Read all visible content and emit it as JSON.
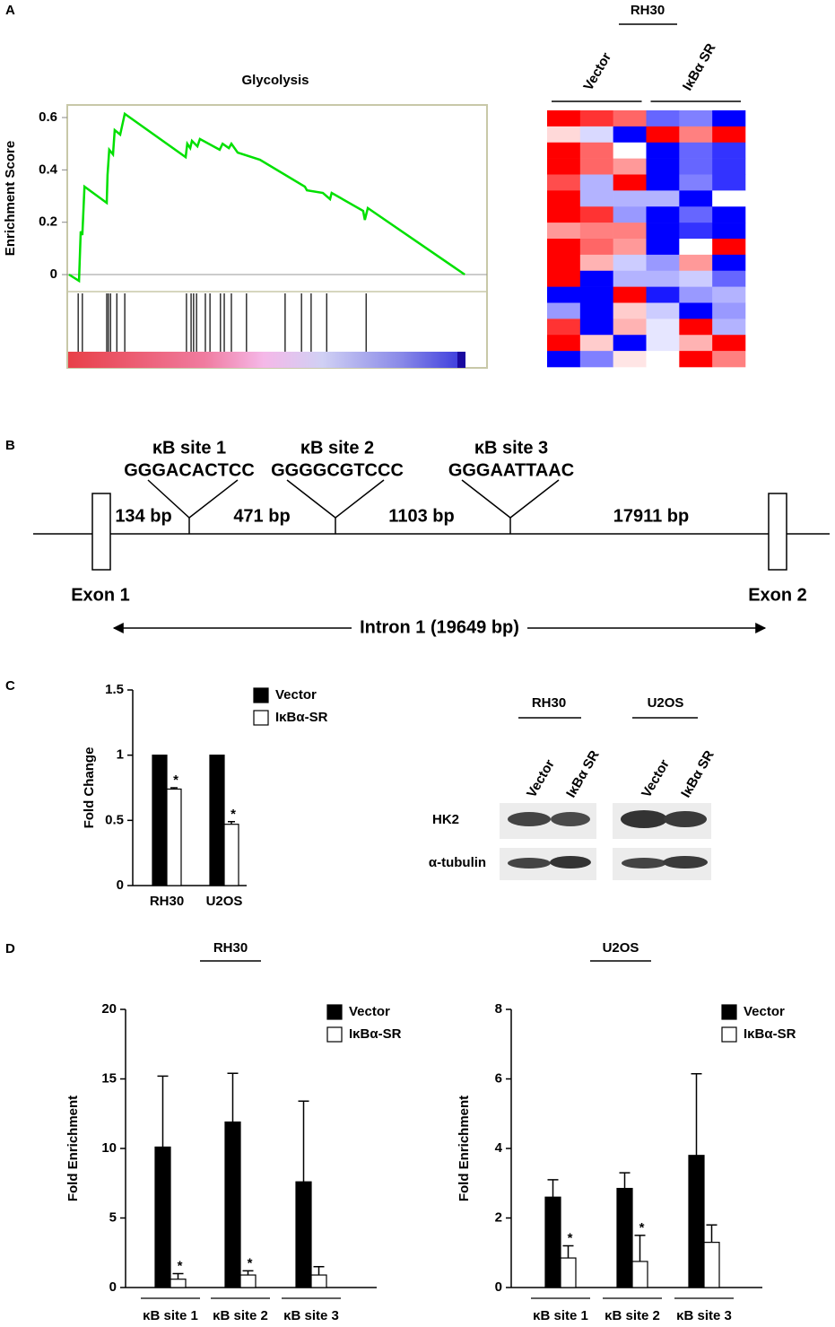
{
  "panel_labels": [
    "A",
    "B",
    "C",
    "D"
  ],
  "chart_data": [
    {
      "type": "line",
      "title": "Glycolysis",
      "ylabel": "Enrichment Score",
      "x": [
        0.4,
        2.8,
        3.2,
        3.6,
        4.1,
        9.4,
        9.6,
        10.0,
        10.9,
        11.3,
        12.6,
        13.7,
        28.2,
        28.6,
        29.3,
        29.7,
        31.0,
        31.6,
        36.3,
        37.0,
        38.5,
        39.1,
        40.6,
        45.9,
        56.6,
        57.1,
        60.9,
        62.6,
        63.0,
        70.5,
        70.9,
        71.6,
        94.7
      ],
      "values": [
        0,
        -0.024,
        0.165,
        0.151,
        0.336,
        0.274,
        0.381,
        0.477,
        0.459,
        0.552,
        0.535,
        0.614,
        0.449,
        0.5,
        0.483,
        0.511,
        0.49,
        0.518,
        0.477,
        0.5,
        0.483,
        0.5,
        0.466,
        0.439,
        0.336,
        0.322,
        0.312,
        0.288,
        0.312,
        0.243,
        0.209,
        0.254,
        0
      ],
      "color": "#00e000",
      "xlim": [
        0,
        100
      ],
      "ylim": [
        -0.065,
        0.648
      ],
      "yticks": [
        0,
        0.2,
        0.4,
        0.6
      ],
      "hits": [
        2.6,
        3.6,
        9.4,
        9.8,
        10.3,
        11.8,
        13.7,
        28.4,
        29.5,
        30.1,
        30.8,
        32.9,
        34.0,
        36.5,
        37.4,
        39.1,
        42.7,
        51.9,
        55.8,
        58.1,
        61.8,
        71.2
      ]
    },
    {
      "type": "heatmap",
      "title": "RH30",
      "groups": [
        "Vector",
        "IκBα SR"
      ],
      "zlim": [
        -1,
        1
      ],
      "colors": [
        "#0000ff",
        "#ffffff",
        "#ff0000"
      ],
      "rows": [
        [
          1,
          0.8,
          0.6,
          -0.6,
          -0.5,
          -1
        ],
        [
          0.15,
          -0.15,
          -1,
          1,
          0.5,
          1
        ],
        [
          1,
          0.6,
          0,
          -1,
          -0.6,
          -0.8
        ],
        [
          1,
          0.6,
          0.4,
          -1,
          -0.6,
          -0.8
        ],
        [
          0.7,
          -0.3,
          1,
          -1,
          -0.5,
          -0.8
        ],
        [
          1,
          -0.3,
          -0.3,
          -0.3,
          -1,
          0
        ],
        [
          1,
          0.8,
          -0.4,
          -1,
          -0.6,
          -1
        ],
        [
          0.4,
          0.5,
          0.5,
          -1,
          -0.8,
          -1
        ],
        [
          1,
          0.6,
          0.4,
          -1,
          0,
          1
        ],
        [
          1,
          0.3,
          -0.2,
          -0.4,
          0.4,
          -1
        ],
        [
          1,
          -1,
          -0.3,
          -0.3,
          -0.2,
          -0.6
        ],
        [
          -1,
          -1,
          1,
          -0.9,
          -0.4,
          -0.3
        ],
        [
          -0.4,
          -1,
          0.2,
          -0.2,
          -1,
          -0.4
        ],
        [
          0.8,
          -1,
          0.3,
          -0.1,
          1,
          -0.3
        ],
        [
          1,
          0.2,
          -1,
          -0.1,
          0.3,
          1
        ],
        [
          -1,
          -0.5,
          0.1,
          0,
          1,
          0.5
        ]
      ]
    },
    {
      "type": "bar",
      "ylabel": "Fold Change",
      "categories": [
        "RH30",
        "U2OS"
      ],
      "series": [
        {
          "name": "Vector",
          "color": "#000000",
          "values": [
            1,
            1
          ]
        },
        {
          "name": "IκBα-SR",
          "color": "#ffffff",
          "values": [
            0.74,
            0.47
          ],
          "errors": [
            0.01,
            0.02
          ],
          "significance": [
            "*",
            "*"
          ]
        }
      ],
      "ylim": [
        0,
        1.5
      ],
      "yticks": [
        0,
        0.5,
        1,
        1.5
      ]
    },
    {
      "type": "bar",
      "title": "RH30",
      "ylabel": "Fold Enrichment",
      "categories": [
        "κB site 1",
        "κB site 2",
        "κB site 3"
      ],
      "series": [
        {
          "name": "Vector",
          "color": "#000000",
          "values": [
            10.1,
            11.9,
            7.6
          ],
          "errors": [
            5.1,
            3.5,
            5.8
          ]
        },
        {
          "name": "IκBα-SR",
          "color": "#ffffff",
          "values": [
            0.6,
            0.9,
            0.9
          ],
          "errors": [
            0.4,
            0.3,
            0.6
          ],
          "significance": [
            "*",
            "*",
            null
          ]
        }
      ],
      "ylim": [
        0,
        20
      ],
      "yticks": [
        0,
        5,
        10,
        15,
        20
      ]
    },
    {
      "type": "bar",
      "title": "U2OS",
      "ylabel": "Fold Enrichment",
      "categories": [
        "κB site 1",
        "κB site 2",
        "κB site 3"
      ],
      "series": [
        {
          "name": "Vector",
          "color": "#000000",
          "values": [
            2.6,
            2.85,
            3.8
          ],
          "errors": [
            0.5,
            0.45,
            2.35
          ]
        },
        {
          "name": "IκBα-SR",
          "color": "#ffffff",
          "values": [
            0.85,
            0.75,
            1.3
          ],
          "errors": [
            0.35,
            0.75,
            0.5
          ],
          "significance": [
            "*",
            "*",
            null
          ]
        }
      ],
      "ylim": [
        0,
        8
      ],
      "yticks": [
        0,
        2,
        4,
        6,
        8
      ]
    }
  ],
  "diagram": {
    "sites": [
      {
        "label": "κB site 1",
        "sequence": "GGGACACTCC"
      },
      {
        "label": "κB site 2",
        "sequence": "GGGGCGTCCC"
      },
      {
        "label": "κB site 3",
        "sequence": "GGGAATTAAC"
      }
    ],
    "segments": [
      "134 bp",
      "471 bp",
      "1103 bp",
      "17911 bp"
    ],
    "exons": [
      "Exon 1",
      "Exon 2"
    ],
    "intron": "Intron 1 (19649 bp)"
  },
  "blot": {
    "groups": [
      {
        "name": "RH30",
        "lanes": [
          "Vector",
          "IκBα SR"
        ]
      },
      {
        "name": "U2OS",
        "lanes": [
          "Vector",
          "IκBα SR"
        ]
      }
    ],
    "rows": [
      "HK2",
      "α-tubulin"
    ]
  }
}
